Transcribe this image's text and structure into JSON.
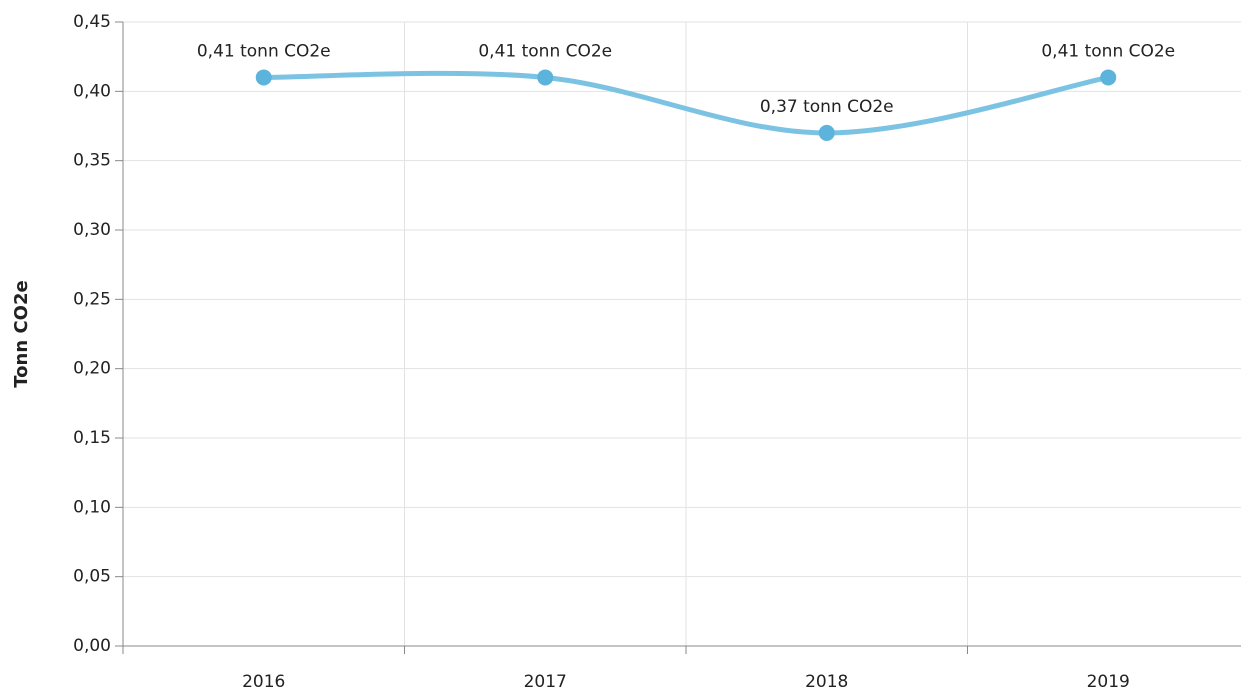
{
  "chart_data": {
    "type": "line",
    "y_label": "Tonn CO2e",
    "categories": [
      "2016",
      "2017",
      "2018",
      "2019"
    ],
    "series": [
      {
        "name": "Tonn CO2e",
        "color": "#7cc3e3",
        "marker_color": "#5cb3dc",
        "values": [
          0.41,
          0.41,
          0.37,
          0.41
        ],
        "value_labels": [
          "0,41 tonn CO2e",
          "0,41 tonn CO2e",
          "0,37 tonn CO2e",
          "0,41 tonn CO2e"
        ]
      }
    ],
    "ylim": [
      0,
      0.45
    ],
    "yticks": [
      {
        "value": 0,
        "label": "0,00"
      },
      {
        "value": 0.05,
        "label": "0,05"
      },
      {
        "value": 0.1,
        "label": "0,10"
      },
      {
        "value": 0.15,
        "label": "0,15"
      },
      {
        "value": 0.2,
        "label": "0,20"
      },
      {
        "value": 0.25,
        "label": "0,25"
      },
      {
        "value": 0.3,
        "label": "0,30"
      },
      {
        "value": 0.35,
        "label": "0,35"
      },
      {
        "value": 0.4,
        "label": "0,40"
      },
      {
        "value": 0.45,
        "label": "0,45"
      }
    ],
    "grid": true
  }
}
